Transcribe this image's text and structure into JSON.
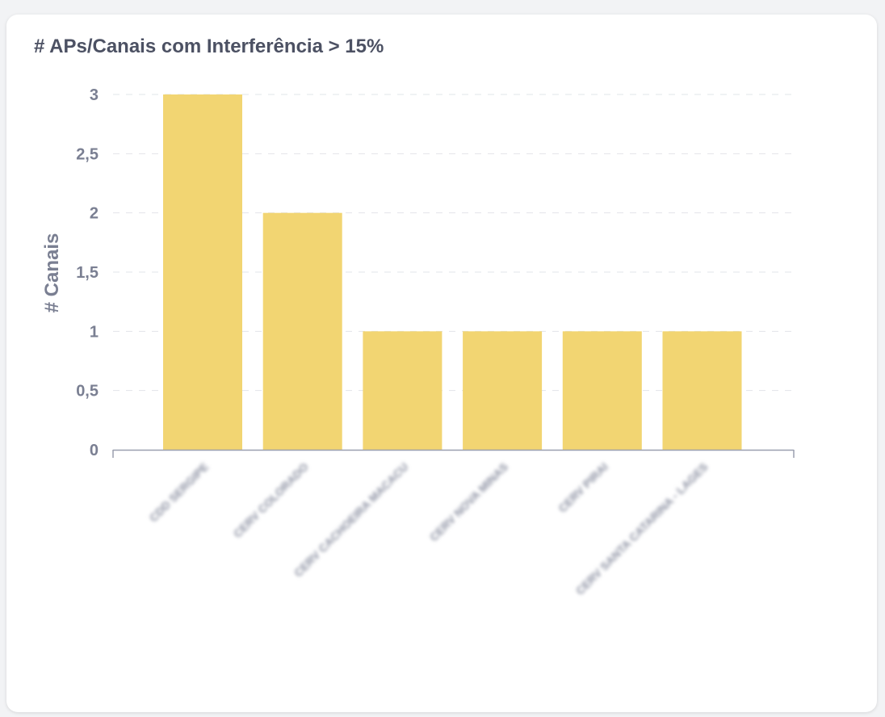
{
  "card": {
    "title": "# APs/Canais com Interferência > 15%"
  },
  "chart_data": {
    "type": "bar",
    "title": "# APs/Canais com Interferência > 15%",
    "xlabel": "",
    "ylabel": "# Canais",
    "categories": [
      "CDD SERGIPE",
      "CERV COLORADO",
      "CERV CACHOEIRA MACACU",
      "CERV NOVA MINAS",
      "CERV PIRAI",
      "CERV SANTA CATARINA - LAGES"
    ],
    "values": [
      3,
      2,
      1,
      1,
      1,
      1
    ],
    "ylim": [
      0,
      3
    ],
    "yticks": [
      0,
      0.5,
      1,
      1.5,
      2,
      2.5,
      3
    ],
    "ytick_labels": [
      "0",
      "0,5",
      "1",
      "1,5",
      "2",
      "2,5",
      "3"
    ],
    "grid": true,
    "legend": "none",
    "x_labels_blurred": true,
    "colors": {
      "bar": "#f2d572",
      "grid": "#e2e4ea",
      "axis": "#9a9faf",
      "tick_text": "#7a7f92",
      "title_text": "#4c5163"
    }
  }
}
